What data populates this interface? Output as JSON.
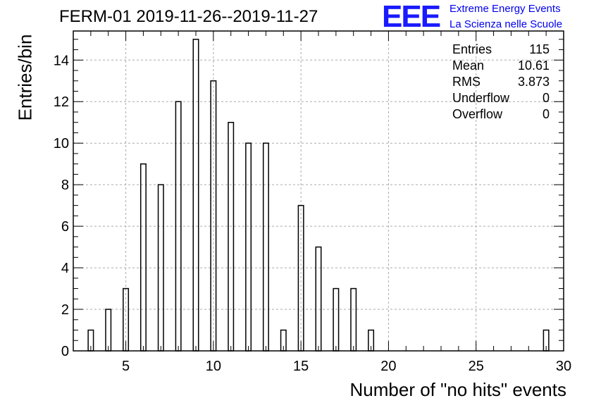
{
  "chart_data": {
    "type": "bar",
    "title": "FERM-01 2019-11-26--2019-11-27",
    "xlabel": "Number of \"no hits\" events",
    "ylabel": "Entries/bin",
    "xlim": [
      2,
      30
    ],
    "ylim": [
      0,
      15.4
    ],
    "xticks": [
      5,
      10,
      15,
      20,
      25,
      30
    ],
    "yticks": [
      0,
      2,
      4,
      6,
      8,
      10,
      12,
      14
    ],
    "grid": true,
    "bin_width": 0.3,
    "bins": [
      {
        "x": 3,
        "y": 1
      },
      {
        "x": 4,
        "y": 2
      },
      {
        "x": 5,
        "y": 3
      },
      {
        "x": 6,
        "y": 9
      },
      {
        "x": 7,
        "y": 8
      },
      {
        "x": 8,
        "y": 12
      },
      {
        "x": 9,
        "y": 15
      },
      {
        "x": 10,
        "y": 13
      },
      {
        "x": 11,
        "y": 11
      },
      {
        "x": 12,
        "y": 10
      },
      {
        "x": 13,
        "y": 10
      },
      {
        "x": 14,
        "y": 1
      },
      {
        "x": 15,
        "y": 7
      },
      {
        "x": 16,
        "y": 5
      },
      {
        "x": 17,
        "y": 3
      },
      {
        "x": 18,
        "y": 3
      },
      {
        "x": 19,
        "y": 1
      },
      {
        "x": 29,
        "y": 1
      }
    ],
    "stats_box": [
      {
        "label": "Entries",
        "value": "115"
      },
      {
        "label": "Mean",
        "value": "10.61"
      },
      {
        "label": "RMS",
        "value": "3.873"
      },
      {
        "label": "Underflow",
        "value": "0"
      },
      {
        "label": "Overflow",
        "value": "0"
      }
    ]
  },
  "logo": {
    "mark": "EEE",
    "line1": "Extreme Energy Events",
    "line2": "La Scienza nelle Scuole"
  }
}
